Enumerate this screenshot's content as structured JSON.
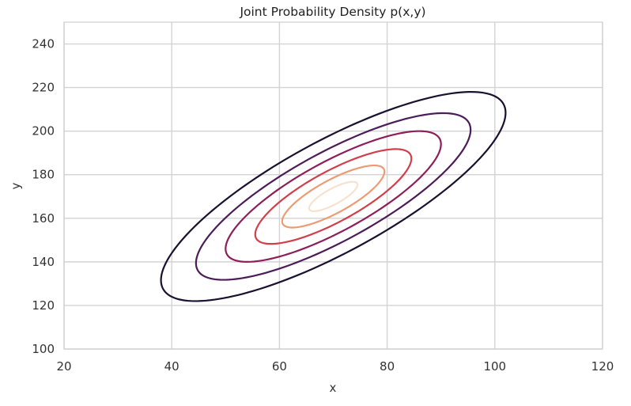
{
  "chart_data": {
    "type": "contour",
    "title": "Joint Probability Density p(x,y)",
    "xlabel": "x",
    "ylabel": "y",
    "xlim": [
      20,
      120
    ],
    "ylim": [
      100,
      250
    ],
    "xticks": [
      20,
      40,
      60,
      80,
      100,
      120
    ],
    "yticks": [
      100,
      120,
      140,
      160,
      180,
      200,
      220,
      240
    ],
    "grid": true,
    "distribution": {
      "mean": [
        70,
        170
      ],
      "std": [
        10,
        15
      ],
      "correlation": 0.8
    },
    "contour_levels": [
      {
        "mahalanobis_radius": 3.2,
        "color": "#1a1030"
      },
      {
        "mahalanobis_radius": 2.55,
        "color": "#4b1c57"
      },
      {
        "mahalanobis_radius": 2.0,
        "color": "#8c1f5a"
      },
      {
        "mahalanobis_radius": 1.45,
        "color": "#d13f4b"
      },
      {
        "mahalanobis_radius": 0.95,
        "color": "#ed9b72"
      },
      {
        "mahalanobis_radius": 0.45,
        "color": "#f7e2cf"
      }
    ]
  }
}
